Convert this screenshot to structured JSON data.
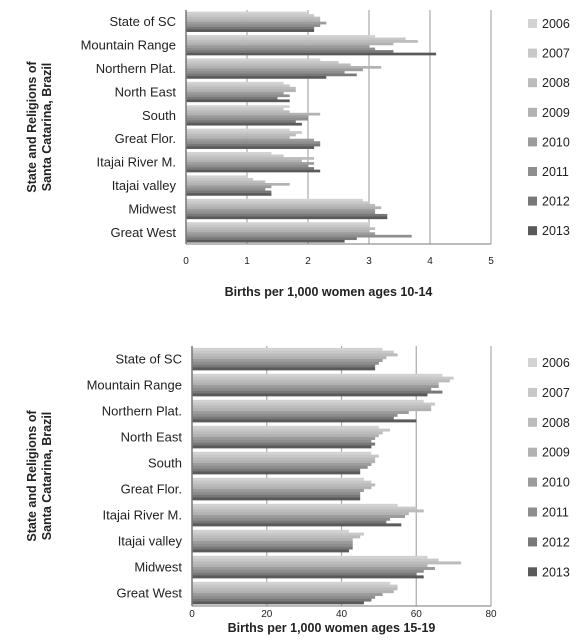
{
  "chart_data": [
    {
      "type": "bar",
      "orientation": "horizontal",
      "ylabel": "State and Religions of Santa Catarina, Brazil",
      "xlabel": "Births per 1,000 women ages 10-14",
      "xlim": [
        0,
        5
      ],
      "xticks": [
        0,
        1,
        2,
        3,
        4,
        5
      ],
      "grid": true,
      "legend_position": "right",
      "categories": [
        "State of SC",
        "Mountain Range",
        "Northern Plat.",
        "North East",
        "South",
        "Great Flor.",
        "Itajai River M.",
        "Itajai valley",
        "Midwest",
        "Great West"
      ],
      "series": [
        {
          "name": "2006",
          "values": [
            2.0,
            3.1,
            2.2,
            1.6,
            1.7,
            1.7,
            1.4,
            1.0,
            2.9,
            3.0
          ]
        },
        {
          "name": "2007",
          "values": [
            2.1,
            3.6,
            2.5,
            1.7,
            1.6,
            1.9,
            1.6,
            1.1,
            3.0,
            3.0
          ]
        },
        {
          "name": "2008",
          "values": [
            2.2,
            3.8,
            2.7,
            1.8,
            1.7,
            1.8,
            2.1,
            1.3,
            3.1,
            3.1
          ]
        },
        {
          "name": "2009",
          "values": [
            2.2,
            3.4,
            3.2,
            1.8,
            2.2,
            1.7,
            1.9,
            1.7,
            3.2,
            3.0
          ]
        },
        {
          "name": "2010",
          "values": [
            2.3,
            3.0,
            2.9,
            1.6,
            2.0,
            2.1,
            2.1,
            1.4,
            3.1,
            3.1
          ]
        },
        {
          "name": "2011",
          "values": [
            2.2,
            3.1,
            2.6,
            1.7,
            2.0,
            2.2,
            2.0,
            1.3,
            3.1,
            3.7
          ]
        },
        {
          "name": "2012",
          "values": [
            2.1,
            3.4,
            2.8,
            1.5,
            1.8,
            2.2,
            2.1,
            1.4,
            3.3,
            2.8
          ]
        },
        {
          "name": "2013",
          "values": [
            2.1,
            4.1,
            2.3,
            1.7,
            1.9,
            2.1,
            2.2,
            1.4,
            3.3,
            2.6
          ]
        }
      ]
    },
    {
      "type": "bar",
      "orientation": "horizontal",
      "ylabel": "State and Religions of Santa Catarina, Brazil",
      "xlabel": "Births per 1,000 women ages 15-19",
      "xlim": [
        0,
        80
      ],
      "xticks": [
        0,
        20,
        40,
        60,
        80
      ],
      "grid": true,
      "legend_position": "right",
      "categories": [
        "State of SC",
        "Mountain Range",
        "Northern Plat.",
        "North East",
        "South",
        "Great Flor.",
        "Itajai River M.",
        "Itajai valley",
        "Midwest",
        "Great West"
      ],
      "series": [
        {
          "name": "2006",
          "values": [
            51,
            67,
            62,
            50,
            48,
            46,
            55,
            42,
            63,
            53
          ]
        },
        {
          "name": "2007",
          "values": [
            54,
            70,
            65,
            53,
            50,
            48,
            60,
            46,
            66,
            55
          ]
        },
        {
          "name": "2008",
          "values": [
            55,
            69,
            64,
            51,
            49,
            49,
            62,
            45,
            72,
            55
          ]
        },
        {
          "name": "2009",
          "values": [
            52,
            66,
            64,
            50,
            49,
            48,
            58,
            43,
            63,
            54
          ]
        },
        {
          "name": "2010",
          "values": [
            51,
            66,
            58,
            49,
            48,
            46,
            57,
            43,
            65,
            51
          ]
        },
        {
          "name": "2011",
          "values": [
            50,
            64,
            55,
            48,
            47,
            45,
            53,
            43,
            62,
            49
          ]
        },
        {
          "name": "2012",
          "values": [
            49,
            67,
            54,
            49,
            45,
            45,
            52,
            43,
            60,
            48
          ]
        },
        {
          "name": "2013",
          "values": [
            49,
            63,
            60,
            48,
            45,
            45,
            56,
            42,
            62,
            46
          ]
        }
      ]
    }
  ],
  "colors": {
    "series": [
      "#d2d2d2",
      "#c8c8c8",
      "#bcbcbc",
      "#b2b2b2",
      "#9c9c9c",
      "#8e8e8e",
      "#787878",
      "#5a5a5a"
    ],
    "axis": "#777777",
    "grid": "#aaaaaa",
    "text": "#222222",
    "plot_background": "#ffffff"
  }
}
